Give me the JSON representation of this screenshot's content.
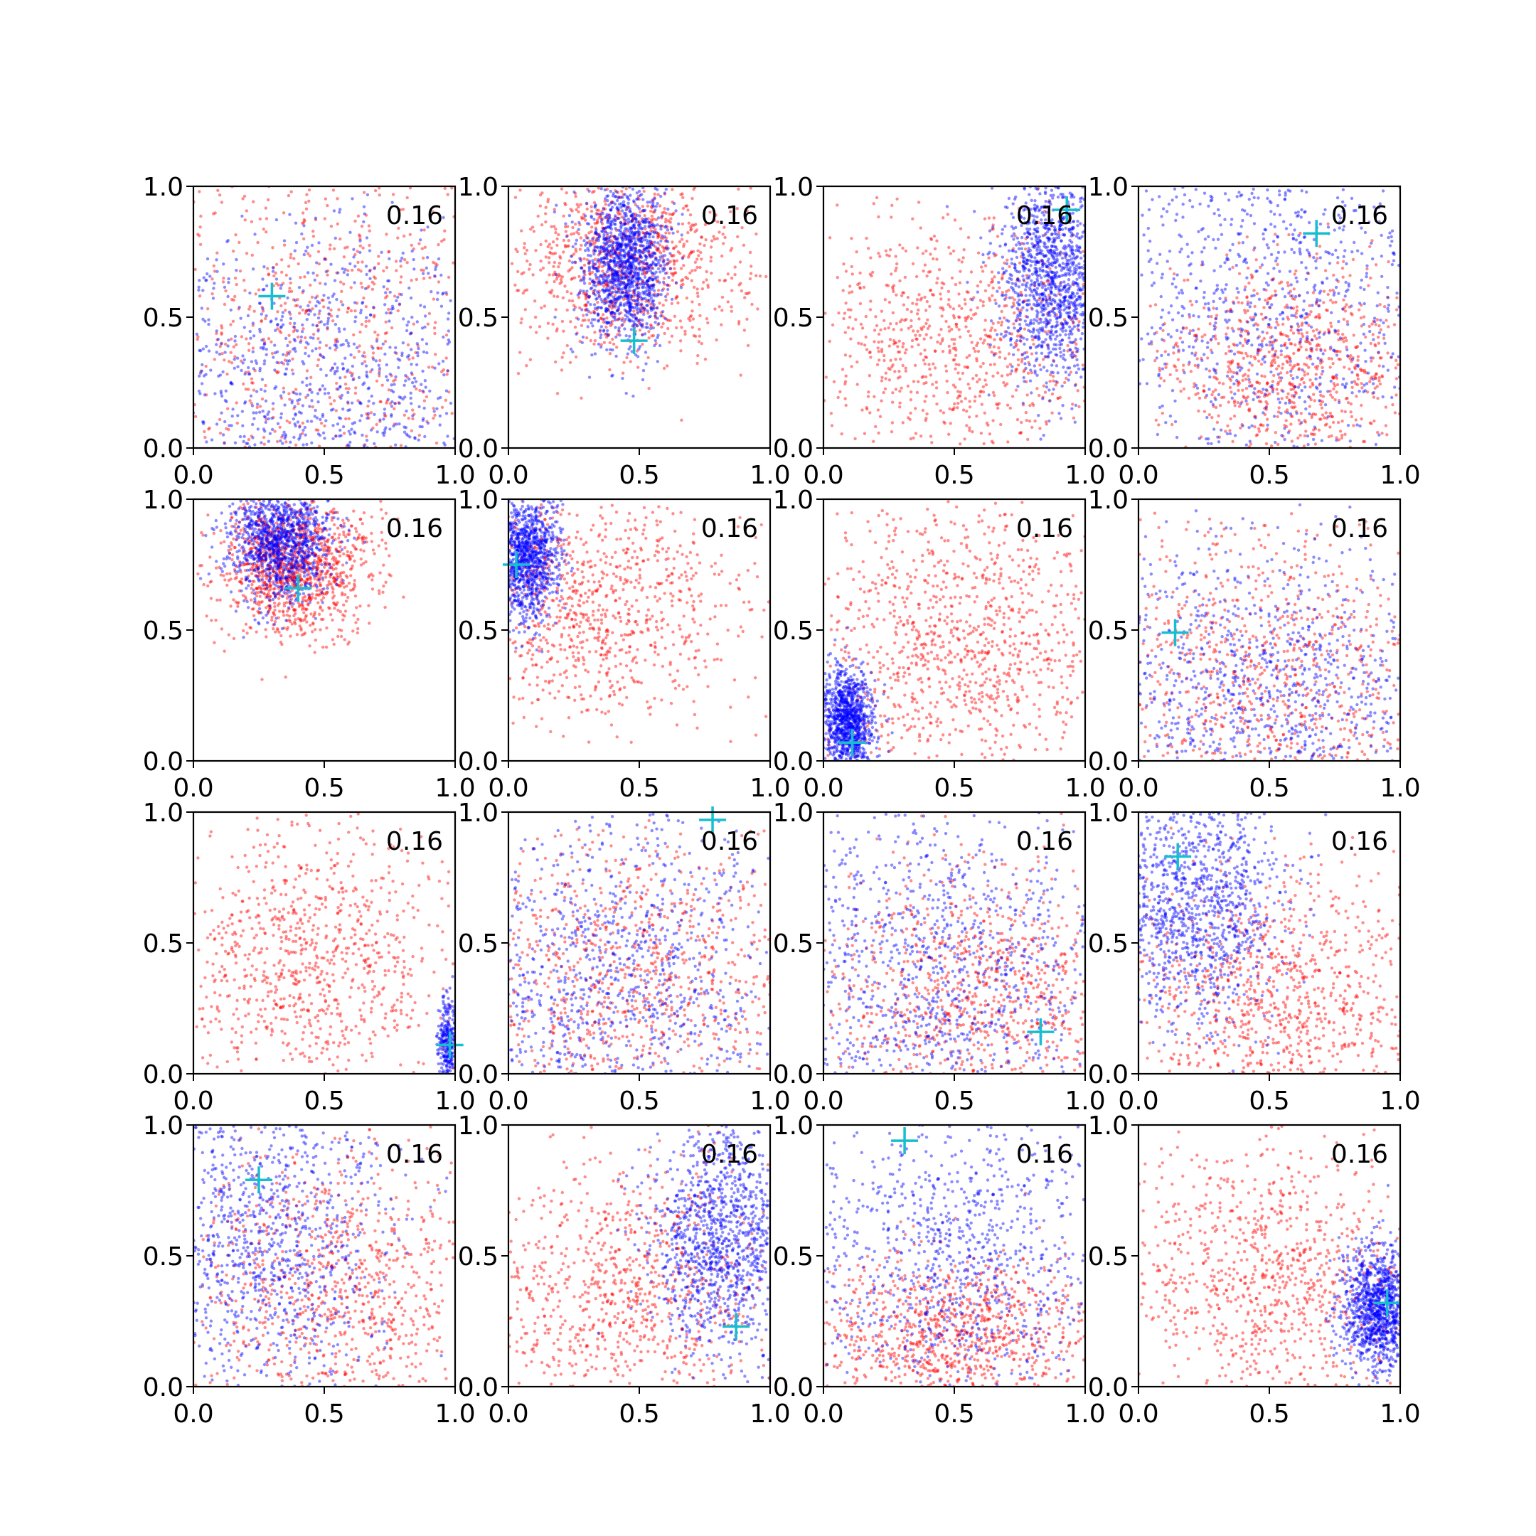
{
  "figure": {
    "rows": 4,
    "cols": 4,
    "colors": {
      "series_red": "#ff0000",
      "series_blue": "#0000ff",
      "marker_cyan": "#17becf"
    }
  },
  "chart_data": [
    {
      "type": "scatter",
      "annotation": "0.16",
      "xlim": [
        0,
        1
      ],
      "ylim": [
        0,
        1
      ],
      "xticks": [
        "0.0",
        "0.5",
        "1.0"
      ],
      "yticks": [
        "0.0",
        "0.5",
        "1.0"
      ],
      "marker": {
        "x": 0.3,
        "y": 0.58
      },
      "red": {
        "cx": 0.5,
        "cy": 0.5,
        "sx": 0.4,
        "sy": 0.4,
        "n": 900
      },
      "blue": {
        "cx": 0.5,
        "cy": 0.2,
        "sx": 0.45,
        "sy": 0.35,
        "n": 1300
      }
    },
    {
      "type": "scatter",
      "annotation": "0.16",
      "xlim": [
        0,
        1
      ],
      "ylim": [
        0,
        1
      ],
      "xticks": [
        "0.0",
        "0.5",
        "1.0"
      ],
      "yticks": [
        "0.0",
        "0.5",
        "1.0"
      ],
      "marker": {
        "x": 0.48,
        "y": 0.41
      },
      "red": {
        "cx": 0.45,
        "cy": 0.7,
        "sx": 0.22,
        "sy": 0.18,
        "n": 1000
      },
      "blue": {
        "cx": 0.45,
        "cy": 0.7,
        "sx": 0.08,
        "sy": 0.15,
        "n": 1300
      }
    },
    {
      "type": "scatter",
      "annotation": "0.16",
      "xlim": [
        0,
        1
      ],
      "ylim": [
        0,
        1
      ],
      "xticks": [
        "0.0",
        "0.5",
        "1.0"
      ],
      "yticks": [
        "0.0",
        "0.5",
        "1.0"
      ],
      "marker": {
        "x": 0.93,
        "y": 0.91
      },
      "red": {
        "cx": 0.5,
        "cy": 0.4,
        "sx": 0.3,
        "sy": 0.25,
        "n": 900
      },
      "blue": {
        "cx": 0.88,
        "cy": 0.65,
        "sx": 0.1,
        "sy": 0.2,
        "n": 1300
      }
    },
    {
      "type": "scatter",
      "annotation": "0.16",
      "xlim": [
        0,
        1
      ],
      "ylim": [
        0,
        1
      ],
      "xticks": [
        "0.0",
        "0.5",
        "1.0"
      ],
      "yticks": [
        "0.0",
        "0.5",
        "1.0"
      ],
      "marker": {
        "x": 0.68,
        "y": 0.82
      },
      "red": {
        "cx": 0.6,
        "cy": 0.3,
        "sx": 0.25,
        "sy": 0.2,
        "n": 900
      },
      "blue": {
        "cx": 0.5,
        "cy": 0.55,
        "sx": 0.4,
        "sy": 0.4,
        "n": 1200
      }
    },
    {
      "type": "scatter",
      "annotation": "0.16",
      "xlim": [
        0,
        1
      ],
      "ylim": [
        0,
        1
      ],
      "xticks": [
        "0.0",
        "0.5",
        "1.0"
      ],
      "yticks": [
        "0.0",
        "0.5",
        "1.0"
      ],
      "marker": {
        "x": 0.4,
        "y": 0.66
      },
      "red": {
        "cx": 0.38,
        "cy": 0.75,
        "sx": 0.14,
        "sy": 0.13,
        "n": 1200
      },
      "blue": {
        "cx": 0.33,
        "cy": 0.85,
        "sx": 0.1,
        "sy": 0.12,
        "n": 1200
      }
    },
    {
      "type": "scatter",
      "annotation": "0.16",
      "xlim": [
        0,
        1
      ],
      "ylim": [
        0,
        1
      ],
      "xticks": [
        "0.0",
        "0.5",
        "1.0"
      ],
      "yticks": [
        "0.0",
        "0.5",
        "1.0"
      ],
      "marker": {
        "x": 0.03,
        "y": 0.75
      },
      "red": {
        "cx": 0.3,
        "cy": 0.6,
        "sx": 0.3,
        "sy": 0.22,
        "n": 1000
      },
      "blue": {
        "cx": 0.07,
        "cy": 0.78,
        "sx": 0.06,
        "sy": 0.12,
        "n": 1100
      }
    },
    {
      "type": "scatter",
      "annotation": "0.16",
      "xlim": [
        0,
        1
      ],
      "ylim": [
        0,
        1
      ],
      "xticks": [
        "0.0",
        "0.5",
        "1.0"
      ],
      "yticks": [
        "0.0",
        "0.5",
        "1.0"
      ],
      "marker": {
        "x": 0.11,
        "y": 0.07
      },
      "red": {
        "cx": 0.55,
        "cy": 0.45,
        "sx": 0.3,
        "sy": 0.28,
        "n": 1100
      },
      "blue": {
        "cx": 0.09,
        "cy": 0.15,
        "sx": 0.05,
        "sy": 0.1,
        "n": 1100
      }
    },
    {
      "type": "scatter",
      "annotation": "0.16",
      "xlim": [
        0,
        1
      ],
      "ylim": [
        0,
        1
      ],
      "xticks": [
        "0.0",
        "0.5",
        "1.0"
      ],
      "yticks": [
        "0.0",
        "0.5",
        "1.0"
      ],
      "marker": {
        "x": 0.14,
        "y": 0.49
      },
      "red": {
        "cx": 0.5,
        "cy": 0.3,
        "sx": 0.35,
        "sy": 0.3,
        "n": 1000
      },
      "blue": {
        "cx": 0.5,
        "cy": 0.25,
        "sx": 0.4,
        "sy": 0.3,
        "n": 1200
      }
    },
    {
      "type": "scatter",
      "annotation": "0.16",
      "xlim": [
        0,
        1
      ],
      "ylim": [
        0,
        1
      ],
      "xticks": [
        "0.0",
        "0.5",
        "1.0"
      ],
      "yticks": [
        "0.0",
        "0.5",
        "1.0"
      ],
      "marker": {
        "x": 0.98,
        "y": 0.11
      },
      "red": {
        "cx": 0.45,
        "cy": 0.45,
        "sx": 0.3,
        "sy": 0.28,
        "n": 1000
      },
      "blue": {
        "cx": 0.97,
        "cy": 0.12,
        "sx": 0.02,
        "sy": 0.08,
        "n": 300
      }
    },
    {
      "type": "scatter",
      "annotation": "0.16",
      "xlim": [
        0,
        1
      ],
      "ylim": [
        0,
        1
      ],
      "xticks": [
        "0.0",
        "0.5",
        "1.0"
      ],
      "yticks": [
        "0.0",
        "0.5",
        "1.0"
      ],
      "marker": {
        "x": 0.78,
        "y": 0.97
      },
      "red": {
        "cx": 0.5,
        "cy": 0.35,
        "sx": 0.35,
        "sy": 0.3,
        "n": 1000
      },
      "blue": {
        "cx": 0.4,
        "cy": 0.35,
        "sx": 0.35,
        "sy": 0.35,
        "n": 1200
      }
    },
    {
      "type": "scatter",
      "annotation": "0.16",
      "xlim": [
        0,
        1
      ],
      "ylim": [
        0,
        1
      ],
      "xticks": [
        "0.0",
        "0.5",
        "1.0"
      ],
      "yticks": [
        "0.0",
        "0.5",
        "1.0"
      ],
      "marker": {
        "x": 0.83,
        "y": 0.16
      },
      "red": {
        "cx": 0.6,
        "cy": 0.3,
        "sx": 0.3,
        "sy": 0.25,
        "n": 1000
      },
      "blue": {
        "cx": 0.4,
        "cy": 0.4,
        "sx": 0.35,
        "sy": 0.35,
        "n": 1200
      }
    },
    {
      "type": "scatter",
      "annotation": "0.16",
      "xlim": [
        0,
        1
      ],
      "ylim": [
        0,
        1
      ],
      "xticks": [
        "0.0",
        "0.5",
        "1.0"
      ],
      "yticks": [
        "0.0",
        "0.5",
        "1.0"
      ],
      "marker": {
        "x": 0.15,
        "y": 0.83
      },
      "red": {
        "cx": 0.55,
        "cy": 0.3,
        "sx": 0.3,
        "sy": 0.25,
        "n": 1000
      },
      "blue": {
        "cx": 0.2,
        "cy": 0.65,
        "sx": 0.18,
        "sy": 0.22,
        "n": 1200
      }
    },
    {
      "type": "scatter",
      "annotation": "0.16",
      "xlim": [
        0,
        1
      ],
      "ylim": [
        0,
        1
      ],
      "xticks": [
        "0.0",
        "0.5",
        "1.0"
      ],
      "yticks": [
        "0.0",
        "0.5",
        "1.0"
      ],
      "marker": {
        "x": 0.25,
        "y": 0.79
      },
      "red": {
        "cx": 0.55,
        "cy": 0.35,
        "sx": 0.3,
        "sy": 0.3,
        "n": 1000
      },
      "blue": {
        "cx": 0.25,
        "cy": 0.55,
        "sx": 0.25,
        "sy": 0.35,
        "n": 1200
      }
    },
    {
      "type": "scatter",
      "annotation": "0.16",
      "xlim": [
        0,
        1
      ],
      "ylim": [
        0,
        1
      ],
      "xticks": [
        "0.0",
        "0.5",
        "1.0"
      ],
      "yticks": [
        "0.0",
        "0.5",
        "1.0"
      ],
      "marker": {
        "x": 0.87,
        "y": 0.23
      },
      "red": {
        "cx": 0.45,
        "cy": 0.35,
        "sx": 0.3,
        "sy": 0.28,
        "n": 1000
      },
      "blue": {
        "cx": 0.82,
        "cy": 0.55,
        "sx": 0.14,
        "sy": 0.22,
        "n": 1200
      }
    },
    {
      "type": "scatter",
      "annotation": "0.16",
      "xlim": [
        0,
        1
      ],
      "ylim": [
        0,
        1
      ],
      "xticks": [
        "0.0",
        "0.5",
        "1.0"
      ],
      "yticks": [
        "0.0",
        "0.5",
        "1.0"
      ],
      "marker": {
        "x": 0.31,
        "y": 0.94
      },
      "red": {
        "cx": 0.5,
        "cy": 0.2,
        "sx": 0.3,
        "sy": 0.15,
        "n": 1000
      },
      "blue": {
        "cx": 0.5,
        "cy": 0.5,
        "sx": 0.3,
        "sy": 0.3,
        "n": 1000
      }
    },
    {
      "type": "scatter",
      "annotation": "0.16",
      "xlim": [
        0,
        1
      ],
      "ylim": [
        0,
        1
      ],
      "xticks": [
        "0.0",
        "0.5",
        "1.0"
      ],
      "yticks": [
        "0.0",
        "0.5",
        "1.0"
      ],
      "marker": {
        "x": 0.95,
        "y": 0.32
      },
      "red": {
        "cx": 0.5,
        "cy": 0.4,
        "sx": 0.3,
        "sy": 0.28,
        "n": 1000
      },
      "blue": {
        "cx": 0.92,
        "cy": 0.3,
        "sx": 0.07,
        "sy": 0.12,
        "n": 1200
      }
    }
  ]
}
